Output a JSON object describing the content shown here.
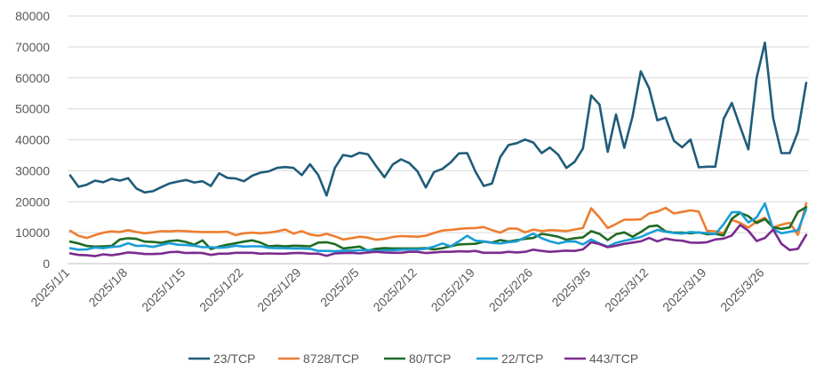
{
  "chart_data": {
    "type": "line",
    "title": "",
    "xlabel": "",
    "ylabel": "",
    "ylim": [
      0,
      80000
    ],
    "yticks": [
      0,
      10000,
      20000,
      30000,
      40000,
      50000,
      60000,
      70000,
      80000
    ],
    "ytick_labels": [
      "0",
      "10000",
      "20000",
      "30000",
      "40000",
      "50000",
      "60000",
      "70000",
      "80000"
    ],
    "x": [
      "2025/1/1",
      "2025/1/2",
      "2025/1/3",
      "2025/1/4",
      "2025/1/5",
      "2025/1/6",
      "2025/1/7",
      "2025/1/8",
      "2025/1/9",
      "2025/1/10",
      "2025/1/11",
      "2025/1/12",
      "2025/1/13",
      "2025/1/14",
      "2025/1/15",
      "2025/1/16",
      "2025/1/17",
      "2025/1/18",
      "2025/1/19",
      "2025/1/20",
      "2025/1/21",
      "2025/1/22",
      "2025/1/23",
      "2025/1/24",
      "2025/1/25",
      "2025/1/26",
      "2025/1/27",
      "2025/1/28",
      "2025/1/29",
      "2025/1/30",
      "2025/1/31",
      "2025/2/1",
      "2025/2/2",
      "2025/2/3",
      "2025/2/4",
      "2025/2/5",
      "2025/2/6",
      "2025/2/7",
      "2025/2/8",
      "2025/2/9",
      "2025/2/10",
      "2025/2/11",
      "2025/2/12",
      "2025/2/13",
      "2025/2/14",
      "2025/2/15",
      "2025/2/16",
      "2025/2/17",
      "2025/2/18",
      "2025/2/19",
      "2025/2/20",
      "2025/2/21",
      "2025/2/22",
      "2025/2/23",
      "2025/2/24",
      "2025/2/25",
      "2025/2/26",
      "2025/2/27",
      "2025/2/28",
      "2025/3/1",
      "2025/3/2",
      "2025/3/3",
      "2025/3/4",
      "2025/3/5",
      "2025/3/6",
      "2025/3/7",
      "2025/3/8",
      "2025/3/9",
      "2025/3/10",
      "2025/3/11",
      "2025/3/12",
      "2025/3/13",
      "2025/3/14",
      "2025/3/15",
      "2025/3/16",
      "2025/3/17",
      "2025/3/18",
      "2025/3/19",
      "2025/3/20",
      "2025/3/21",
      "2025/3/22",
      "2025/3/23",
      "2025/3/24",
      "2025/3/25",
      "2025/3/26",
      "2025/3/27",
      "2025/3/28",
      "2025/3/29",
      "2025/3/30",
      "2025/3/31"
    ],
    "x_tick_labels": [
      {
        "index": 0,
        "label": "2025/1/1"
      },
      {
        "index": 7,
        "label": "2025/1/8"
      },
      {
        "index": 14,
        "label": "2025/1/15"
      },
      {
        "index": 21,
        "label": "2025/1/22"
      },
      {
        "index": 28,
        "label": "2025/1/29"
      },
      {
        "index": 35,
        "label": "2025/2/5"
      },
      {
        "index": 42,
        "label": "2025/2/12"
      },
      {
        "index": 49,
        "label": "2025/2/19"
      },
      {
        "index": 56,
        "label": "2025/2/26"
      },
      {
        "index": 63,
        "label": "2025/3/5"
      },
      {
        "index": 70,
        "label": "2025/3/12"
      },
      {
        "index": 77,
        "label": "2025/3/19"
      },
      {
        "index": 84,
        "label": "2025/3/26"
      }
    ],
    "grid": "horizontal",
    "legend_position": "bottom",
    "series": [
      {
        "name": "23/TCP",
        "color": "#1f5c7a",
        "values": [
          28500,
          24800,
          25500,
          26800,
          26300,
          27400,
          26800,
          27600,
          24300,
          23000,
          23400,
          24700,
          25900,
          26500,
          27000,
          26200,
          26600,
          25100,
          29200,
          27700,
          27500,
          26600,
          28400,
          29400,
          29800,
          30900,
          31200,
          30900,
          28600,
          32100,
          28600,
          22000,
          30900,
          35100,
          34600,
          35800,
          35300,
          31500,
          27900,
          32000,
          33700,
          32500,
          29800,
          24600,
          29600,
          30600,
          32700,
          35600,
          35700,
          29700,
          25100,
          25900,
          34400,
          38300,
          38900,
          40100,
          39100,
          35700,
          37500,
          35200,
          30900,
          32900,
          37200,
          54300,
          51400,
          36100,
          48200,
          37400,
          47500,
          62100,
          56700,
          46300,
          47200,
          39700,
          37600,
          40100,
          31100,
          31300,
          31300,
          46700,
          51900,
          44300,
          36900,
          60000,
          71400,
          47000,
          35700,
          35700,
          42600,
          58400
        ]
      },
      {
        "name": "8728/TCP",
        "color": "#ed7d31",
        "values": [
          10600,
          9000,
          8300,
          9200,
          10000,
          10400,
          10200,
          10800,
          10200,
          9800,
          10100,
          10500,
          10400,
          10600,
          10500,
          10300,
          10200,
          10200,
          10200,
          10300,
          9200,
          9800,
          10000,
          9800,
          10000,
          10400,
          11000,
          9700,
          10500,
          9400,
          9000,
          9600,
          8800,
          7800,
          8200,
          8700,
          8400,
          7700,
          8000,
          8600,
          8900,
          8800,
          8700,
          9000,
          9900,
          10700,
          10900,
          11200,
          11400,
          11500,
          11800,
          10800,
          10000,
          11300,
          11300,
          10100,
          11000,
          10500,
          10800,
          10700,
          10500,
          11000,
          11500,
          17900,
          14900,
          11500,
          12800,
          14200,
          14200,
          14300,
          16200,
          16800,
          18000,
          16200,
          16700,
          17200,
          16800,
          10600,
          10400,
          9800,
          14100,
          13200,
          11600,
          13600,
          14800,
          11700,
          12600,
          13200,
          9300,
          19400
        ]
      },
      {
        "name": "80/TCP",
        "color": "#1e6b24",
        "values": [
          7100,
          6500,
          5700,
          5500,
          5600,
          5700,
          7800,
          8200,
          8000,
          7100,
          7000,
          6700,
          7300,
          7500,
          7000,
          6100,
          7500,
          4700,
          5500,
          6100,
          6600,
          7100,
          7500,
          6800,
          5600,
          5800,
          5600,
          5800,
          5700,
          5600,
          6800,
          6900,
          6300,
          4900,
          5200,
          5500,
          4200,
          4800,
          5000,
          4900,
          4900,
          4900,
          4900,
          5000,
          4600,
          5000,
          5600,
          6200,
          6300,
          6400,
          7100,
          6800,
          7600,
          7100,
          7600,
          8000,
          8300,
          9600,
          9200,
          8700,
          7700,
          8200,
          8500,
          10500,
          9600,
          7600,
          9500,
          10100,
          8700,
          10200,
          12000,
          12300,
          10400,
          10000,
          10000,
          9800,
          10100,
          9500,
          9600,
          9100,
          14500,
          16400,
          15300,
          13100,
          14400,
          11700,
          11200,
          11700,
          16700,
          18200
        ]
      },
      {
        "name": "22/TCP",
        "color": "#1a9ed6",
        "values": [
          5000,
          4500,
          4600,
          5200,
          5000,
          5400,
          5600,
          6600,
          5700,
          5800,
          5400,
          6000,
          6600,
          6100,
          6000,
          5800,
          5300,
          5300,
          5100,
          5300,
          5800,
          5500,
          5600,
          5600,
          5100,
          5000,
          5000,
          4900,
          4900,
          4800,
          4100,
          4100,
          4000,
          4200,
          4200,
          4300,
          4400,
          4100,
          4300,
          4300,
          4500,
          4600,
          4600,
          4800,
          5500,
          6500,
          5600,
          7200,
          9000,
          7400,
          7200,
          6700,
          6500,
          6900,
          7200,
          8500,
          9700,
          8200,
          7200,
          6500,
          7100,
          7200,
          6200,
          7800,
          6500,
          5500,
          6700,
          7400,
          7900,
          8600,
          9800,
          10900,
          10300,
          9900,
          9700,
          10200,
          10000,
          9900,
          9500,
          12700,
          16600,
          16600,
          13300,
          14900,
          19400,
          11100,
          9800,
          10300,
          10800,
          17600
        ]
      },
      {
        "name": "443/TCP",
        "color": "#7b2c8e",
        "values": [
          3300,
          2800,
          2700,
          2400,
          3000,
          2700,
          3100,
          3600,
          3400,
          3100,
          3100,
          3200,
          3700,
          3800,
          3400,
          3500,
          3400,
          2800,
          3200,
          3200,
          3500,
          3500,
          3500,
          3200,
          3300,
          3200,
          3200,
          3400,
          3400,
          3200,
          3200,
          2500,
          3300,
          3400,
          3500,
          3300,
          3600,
          3800,
          3600,
          3500,
          3500,
          3800,
          3800,
          3400,
          3600,
          3800,
          3800,
          4000,
          3900,
          4100,
          3500,
          3500,
          3500,
          3800,
          3600,
          3800,
          4500,
          4100,
          3800,
          4000,
          4200,
          4100,
          4600,
          6900,
          6300,
          5300,
          5800,
          6400,
          6800,
          7200,
          8300,
          7200,
          8100,
          7600,
          7400,
          6800,
          6700,
          6900,
          7800,
          8100,
          9100,
          12500,
          10600,
          7300,
          8300,
          11000,
          6400,
          4400,
          4800,
          9300
        ]
      }
    ]
  }
}
